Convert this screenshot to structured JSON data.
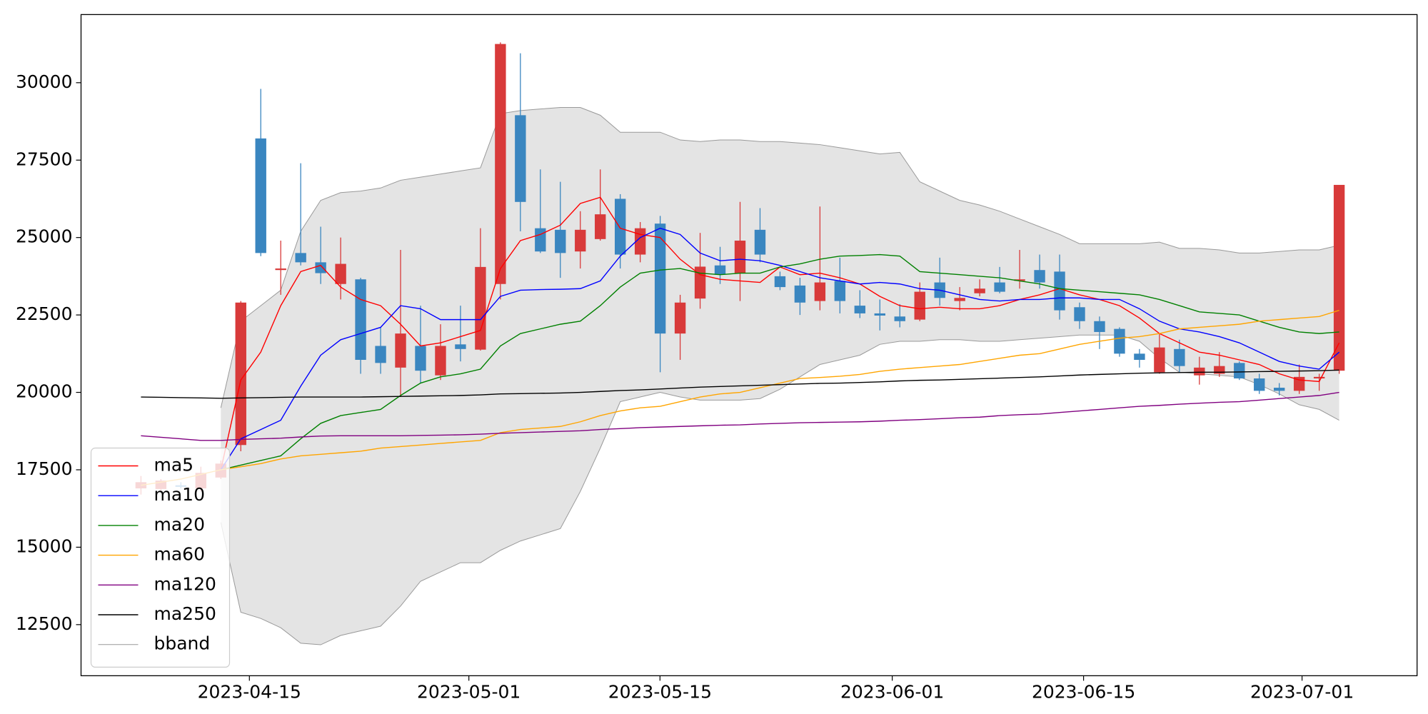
{
  "chart_data": {
    "type": "candlestick",
    "up_color": "#d83a3a",
    "down_color": "#3a86c0",
    "open": [
      16900,
      16880,
      17000,
      16900,
      17250,
      18300,
      28200,
      23950,
      24500,
      24200,
      23500,
      23650,
      21500,
      20800,
      21500,
      20550,
      21550,
      21380,
      23500,
      28950,
      25300,
      25250,
      24550,
      24950,
      26250,
      24450,
      25450,
      21900,
      23030,
      24100,
      23850,
      25250,
      23750,
      23450,
      22950,
      23600,
      22800,
      22550,
      22450,
      22350,
      23550,
      22950,
      23200,
      23550,
      23600,
      23950,
      23900,
      22750,
      22300,
      22050,
      21250,
      20650,
      21400,
      20550,
      20600,
      20950,
      20450,
      20150,
      20050,
      20450,
      20700
    ],
    "high": [
      17300,
      17200,
      17100,
      17600,
      17800,
      22950,
      29800,
      24900,
      27400,
      25350,
      25000,
      23700,
      22100,
      24600,
      22800,
      22200,
      22800,
      25300,
      31300,
      30950,
      27200,
      26800,
      25850,
      27200,
      26400,
      25500,
      25700,
      23150,
      25150,
      24700,
      26150,
      25950,
      23900,
      23700,
      26000,
      24350,
      23300,
      23000,
      22850,
      23550,
      24350,
      23400,
      23650,
      24050,
      24600,
      24450,
      24450,
      22900,
      22450,
      22100,
      21400,
      21900,
      21700,
      21150,
      21300,
      21000,
      20600,
      20300,
      20900,
      20600,
      26700
    ],
    "low": [
      16700,
      16800,
      16900,
      16800,
      17200,
      18100,
      24400,
      23150,
      24100,
      23500,
      23000,
      20600,
      20600,
      19850,
      20300,
      20400,
      21000,
      21350,
      23000,
      25200,
      24500,
      23700,
      24000,
      24900,
      24000,
      24200,
      20650,
      21050,
      22700,
      23500,
      22950,
      24200,
      23300,
      22500,
      22650,
      22550,
      22400,
      22000,
      22100,
      22300,
      22800,
      22650,
      23100,
      23200,
      23350,
      23350,
      22350,
      22050,
      21400,
      21150,
      20800,
      20600,
      20650,
      20250,
      20500,
      20400,
      19950,
      19900,
      19950,
      20050,
      20600
    ],
    "close": [
      17100,
      17150,
      16950,
      17400,
      17700,
      22900,
      24500,
      24000,
      24200,
      23850,
      24150,
      21050,
      20950,
      21900,
      20700,
      21500,
      21400,
      24050,
      31250,
      26150,
      24550,
      24500,
      25250,
      25750,
      24450,
      25300,
      21900,
      22900,
      24060,
      23800,
      24900,
      24450,
      23400,
      22900,
      23550,
      22950,
      22550,
      22480,
      22300,
      23250,
      23050,
      23050,
      23350,
      23250,
      23650,
      23550,
      22650,
      22300,
      21950,
      21250,
      21050,
      21450,
      20850,
      20800,
      20850,
      20450,
      20050,
      20050,
      20500,
      20500,
      26700
    ],
    "series": [
      {
        "name": "ma5",
        "color": "#ff0000",
        "values": [
          null,
          null,
          null,
          null,
          17500,
          20400,
          21300,
          22800,
          23900,
          24100,
          23400,
          23000,
          22800,
          22200,
          21500,
          21600,
          21800,
          22000,
          24000,
          24900,
          25100,
          25400,
          26100,
          26300,
          25300,
          25100,
          25000,
          24300,
          23800,
          23650,
          23600,
          23550,
          24050,
          23800,
          23850,
          23700,
          23500,
          23100,
          22800,
          22700,
          22750,
          22700,
          22700,
          22800,
          23000,
          23150,
          23350,
          23150,
          23000,
          22800,
          22400,
          21900,
          21600,
          21300,
          21200,
          21050,
          20900,
          20600,
          20400,
          20350,
          21600
        ]
      },
      {
        "name": "ma10",
        "color": "#0000ff",
        "values": [
          null,
          null,
          null,
          null,
          17500,
          18500,
          18800,
          19100,
          20200,
          21200,
          21700,
          21900,
          22100,
          22800,
          22700,
          22350,
          22350,
          22350,
          23100,
          23300,
          23320,
          23330,
          23350,
          23600,
          24400,
          25000,
          25300,
          25100,
          24500,
          24250,
          24300,
          24250,
          24100,
          23900,
          23700,
          23600,
          23500,
          23550,
          23500,
          23350,
          23300,
          23150,
          23000,
          22950,
          23000,
          23000,
          23050,
          23050,
          23000,
          23000,
          22700,
          22300,
          22050,
          21950,
          21800,
          21600,
          21300,
          21000,
          20850,
          20750,
          21300
        ]
      },
      {
        "name": "ma20",
        "color": "#008000",
        "values": [
          null,
          null,
          null,
          null,
          17500,
          17650,
          17800,
          17950,
          18500,
          19000,
          19250,
          19350,
          19450,
          19900,
          20300,
          20500,
          20600,
          20750,
          21500,
          21900,
          22050,
          22200,
          22300,
          22800,
          23400,
          23850,
          23950,
          24000,
          23850,
          23800,
          23850,
          23850,
          24050,
          24150,
          24300,
          24400,
          24420,
          24450,
          24400,
          23900,
          23850,
          23800,
          23750,
          23700,
          23600,
          23500,
          23350,
          23300,
          23250,
          23200,
          23150,
          23000,
          22800,
          22600,
          22550,
          22500,
          22300,
          22100,
          21950,
          21900,
          21950
        ]
      },
      {
        "name": "ma60",
        "color": "#ffa500",
        "values": [
          17000,
          17100,
          17200,
          17350,
          17500,
          17600,
          17700,
          17850,
          17950,
          18000,
          18050,
          18100,
          18200,
          18250,
          18300,
          18350,
          18400,
          18450,
          18700,
          18800,
          18850,
          18900,
          19050,
          19250,
          19400,
          19500,
          19550,
          19700,
          19850,
          19950,
          20000,
          20150,
          20300,
          20450,
          20480,
          20520,
          20580,
          20680,
          20750,
          20800,
          20850,
          20900,
          21000,
          21100,
          21200,
          21250,
          21400,
          21550,
          21650,
          21750,
          21800,
          21900,
          22050,
          22100,
          22150,
          22200,
          22300,
          22350,
          22400,
          22450,
          22650
        ]
      },
      {
        "name": "ma120",
        "color": "#800080",
        "values": [
          18600,
          18550,
          18500,
          18450,
          18450,
          18480,
          18500,
          18520,
          18560,
          18590,
          18600,
          18600,
          18600,
          18600,
          18610,
          18620,
          18630,
          18650,
          18680,
          18700,
          18720,
          18740,
          18760,
          18800,
          18830,
          18860,
          18880,
          18900,
          18920,
          18940,
          18950,
          18980,
          19000,
          19020,
          19030,
          19040,
          19050,
          19070,
          19100,
          19120,
          19150,
          19180,
          19200,
          19250,
          19280,
          19300,
          19350,
          19400,
          19450,
          19500,
          19550,
          19580,
          19620,
          19650,
          19680,
          19700,
          19750,
          19800,
          19850,
          19900,
          20000
        ]
      },
      {
        "name": "ma250",
        "color": "#000000",
        "values": [
          19850,
          19840,
          19830,
          19820,
          19810,
          19820,
          19830,
          19840,
          19850,
          19850,
          19850,
          19850,
          19860,
          19870,
          19880,
          19890,
          19900,
          19920,
          19950,
          19960,
          19970,
          19980,
          20000,
          20030,
          20060,
          20080,
          20110,
          20140,
          20170,
          20190,
          20210,
          20230,
          20250,
          20270,
          20290,
          20300,
          20320,
          20340,
          20370,
          20390,
          20400,
          20420,
          20440,
          20460,
          20480,
          20500,
          20530,
          20560,
          20580,
          20600,
          20620,
          20630,
          20640,
          20650,
          20650,
          20660,
          20670,
          20680,
          20690,
          20700,
          20720
        ]
      }
    ],
    "bband": {
      "name": "bband",
      "color": "#999999",
      "fill": "#e4e4e4",
      "upper": [
        null,
        null,
        null,
        null,
        19500,
        22300,
        22800,
        23300,
        25200,
        26200,
        26450,
        26500,
        26600,
        26850,
        26950,
        27050,
        27150,
        27250,
        29000,
        29100,
        29150,
        29200,
        29200,
        28950,
        28400,
        28400,
        28400,
        28150,
        28100,
        28150,
        28150,
        28100,
        28100,
        28050,
        28000,
        27900,
        27800,
        27700,
        27750,
        26800,
        26500,
        26200,
        26050,
        25850,
        25600,
        25350,
        25100,
        24800,
        24800,
        24800,
        24800,
        24850,
        24650,
        24650,
        24600,
        24500,
        24500,
        24550,
        24600,
        24600,
        24750
      ],
      "lower": [
        null,
        null,
        null,
        null,
        15800,
        12900,
        12700,
        12400,
        11900,
        11850,
        12150,
        12300,
        12450,
        13100,
        13900,
        14200,
        14500,
        14500,
        14900,
        15200,
        15400,
        15600,
        16800,
        18200,
        19700,
        19850,
        20000,
        19850,
        19750,
        19750,
        19750,
        19800,
        20100,
        20500,
        20900,
        21050,
        21200,
        21550,
        21650,
        21650,
        21700,
        21700,
        21650,
        21650,
        21700,
        21750,
        21800,
        21850,
        21850,
        21850,
        21650,
        21100,
        20650,
        20600,
        20550,
        20500,
        20250,
        19950,
        19600,
        19450,
        19100
      ]
    },
    "xlim": [
      -3.0,
      63.9
    ],
    "xticks": [
      {
        "value": 5.43,
        "label": "2023-04-15"
      },
      {
        "value": 16.42,
        "label": "2023-05-01"
      },
      {
        "value": 25.99,
        "label": "2023-05-15"
      },
      {
        "value": 37.62,
        "label": "2023-06-01"
      },
      {
        "value": 47.2,
        "label": "2023-06-15"
      },
      {
        "value": 58.14,
        "label": "2023-07-01"
      }
    ],
    "ylim": [
      10850,
      32200
    ],
    "yticks": [
      12500,
      15000,
      17500,
      20000,
      22500,
      25000,
      27500,
      30000
    ],
    "legend": "lower left"
  }
}
